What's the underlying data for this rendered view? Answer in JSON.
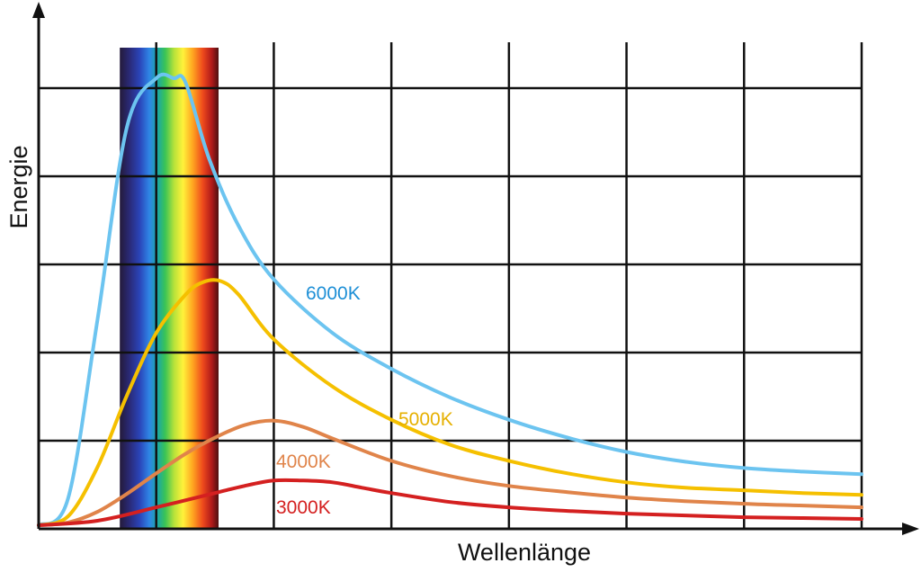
{
  "chart_data": {
    "type": "line",
    "title": "",
    "xlabel": "Wellenlänge",
    "ylabel": "Energie",
    "grid": true,
    "xlim": [
      0,
      7
    ],
    "ylim": [
      0,
      5
    ],
    "visible_spectrum_band": {
      "x_start": 0.69,
      "x_end": 1.53
    },
    "series": [
      {
        "name": "6000K",
        "color": "#6cc4f0",
        "x": [
          0,
          0.25,
          0.5,
          0.75,
          1.0,
          1.15,
          1.25,
          1.45,
          1.7,
          2.0,
          2.5,
          3.0,
          3.5,
          4.0,
          4.5,
          5.0,
          5.5,
          6.0,
          6.5,
          7.0
        ],
        "y": [
          0,
          0.3,
          2.3,
          4.45,
          5.0,
          5.0,
          4.95,
          4.1,
          3.35,
          2.75,
          2.15,
          1.75,
          1.43,
          1.18,
          0.98,
          0.82,
          0.71,
          0.64,
          0.6,
          0.57
        ]
      },
      {
        "name": "5000K",
        "color": "#f5c000",
        "x": [
          0,
          0.25,
          0.5,
          0.75,
          1.0,
          1.25,
          1.4,
          1.55,
          1.7,
          2.0,
          2.5,
          3.0,
          3.5,
          4.0,
          4.5,
          5.0,
          5.5,
          6.0,
          6.5,
          7.0
        ],
        "y": [
          0,
          0.1,
          0.65,
          1.45,
          2.15,
          2.58,
          2.72,
          2.73,
          2.58,
          2.08,
          1.55,
          1.18,
          0.9,
          0.72,
          0.58,
          0.48,
          0.42,
          0.39,
          0.36,
          0.34
        ]
      },
      {
        "name": "4000K",
        "color": "#e0844a",
        "x": [
          0,
          0.25,
          0.5,
          0.75,
          1.0,
          1.25,
          1.5,
          1.75,
          2.0,
          2.25,
          2.5,
          3.0,
          3.5,
          4.0,
          4.5,
          5.0,
          5.5,
          6.0,
          6.5,
          7.0
        ],
        "y": [
          0,
          0.03,
          0.15,
          0.35,
          0.58,
          0.8,
          0.98,
          1.12,
          1.17,
          1.1,
          0.97,
          0.72,
          0.55,
          0.44,
          0.37,
          0.31,
          0.27,
          0.24,
          0.22,
          0.2
        ]
      },
      {
        "name": "3000K",
        "color": "#d42020",
        "x": [
          0,
          0.5,
          1.0,
          1.5,
          1.75,
          2.0,
          2.25,
          2.5,
          2.75,
          3.0,
          3.5,
          4.0,
          4.5,
          5.0,
          5.5,
          6.0,
          6.5,
          7.0
        ],
        "y": [
          0,
          0.05,
          0.2,
          0.36,
          0.44,
          0.5,
          0.5,
          0.48,
          0.42,
          0.36,
          0.26,
          0.2,
          0.16,
          0.13,
          0.11,
          0.09,
          0.08,
          0.07
        ]
      }
    ]
  }
}
